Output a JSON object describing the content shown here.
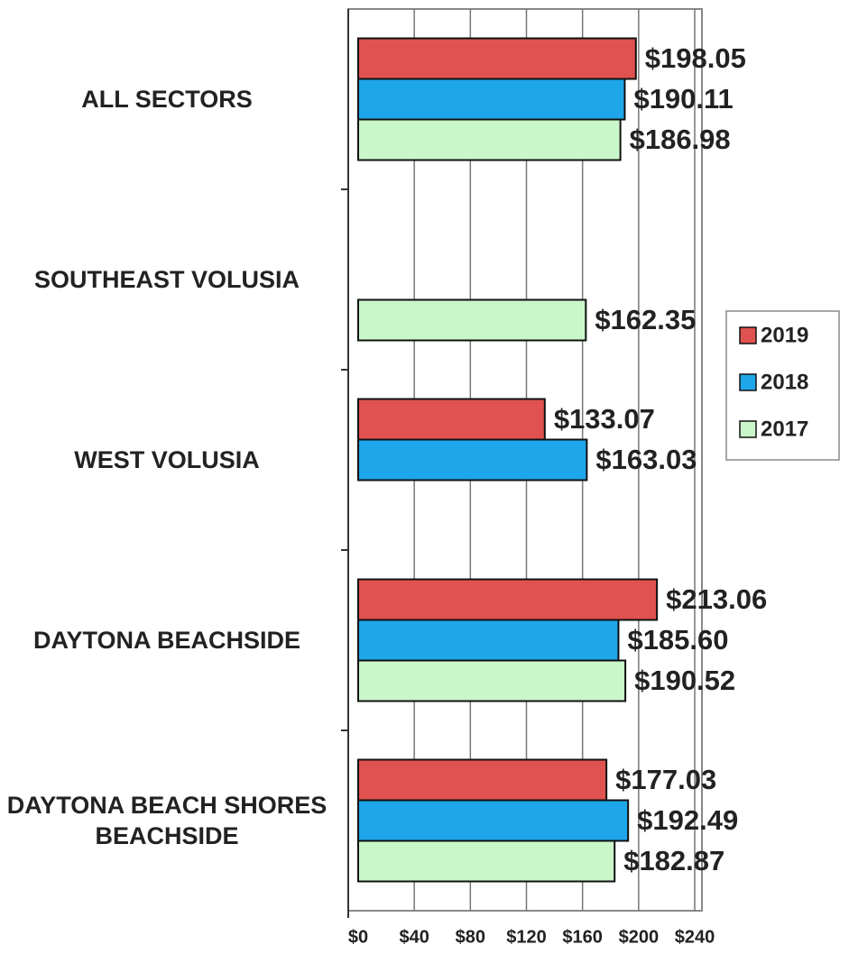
{
  "chart_data": {
    "type": "barh",
    "categories": [
      "ALL SECTORS",
      "SOUTHEAST VOLUSIA",
      "WEST VOLUSIA",
      "DAYTONA BEACHSIDE",
      "DAYTONA BEACH SHORES BEACHSIDE"
    ],
    "series": [
      {
        "name": "2019",
        "color": "#e0524f",
        "values": [
          198.05,
          null,
          133.07,
          213.06,
          177.03
        ],
        "value_labels": [
          "$198.05",
          null,
          "$133.07",
          "$213.06",
          "$177.03"
        ]
      },
      {
        "name": "2018",
        "color": "#1ea6ea",
        "values": [
          190.11,
          null,
          163.03,
          185.6,
          192.49
        ],
        "value_labels": [
          "$190.11",
          null,
          "$163.03",
          "$185.60",
          "$192.49"
        ]
      },
      {
        "name": "2017",
        "color": "#c9f7c9",
        "values": [
          186.98,
          162.35,
          null,
          190.52,
          182.87
        ],
        "value_labels": [
          "$186.98",
          "$162.35",
          null,
          "$190.52",
          "$182.87"
        ]
      }
    ],
    "xlim": [
      0,
      240
    ],
    "xticks": [
      {
        "value": 0,
        "label": "$0"
      },
      {
        "value": 40,
        "label": "$40"
      },
      {
        "value": 80,
        "label": "$80"
      },
      {
        "value": 120,
        "label": "$120"
      },
      {
        "value": 160,
        "label": "$160"
      },
      {
        "value": 200,
        "label": "$200"
      },
      {
        "value": 240,
        "label": "$240"
      }
    ],
    "grid": true,
    "legend": "right"
  }
}
